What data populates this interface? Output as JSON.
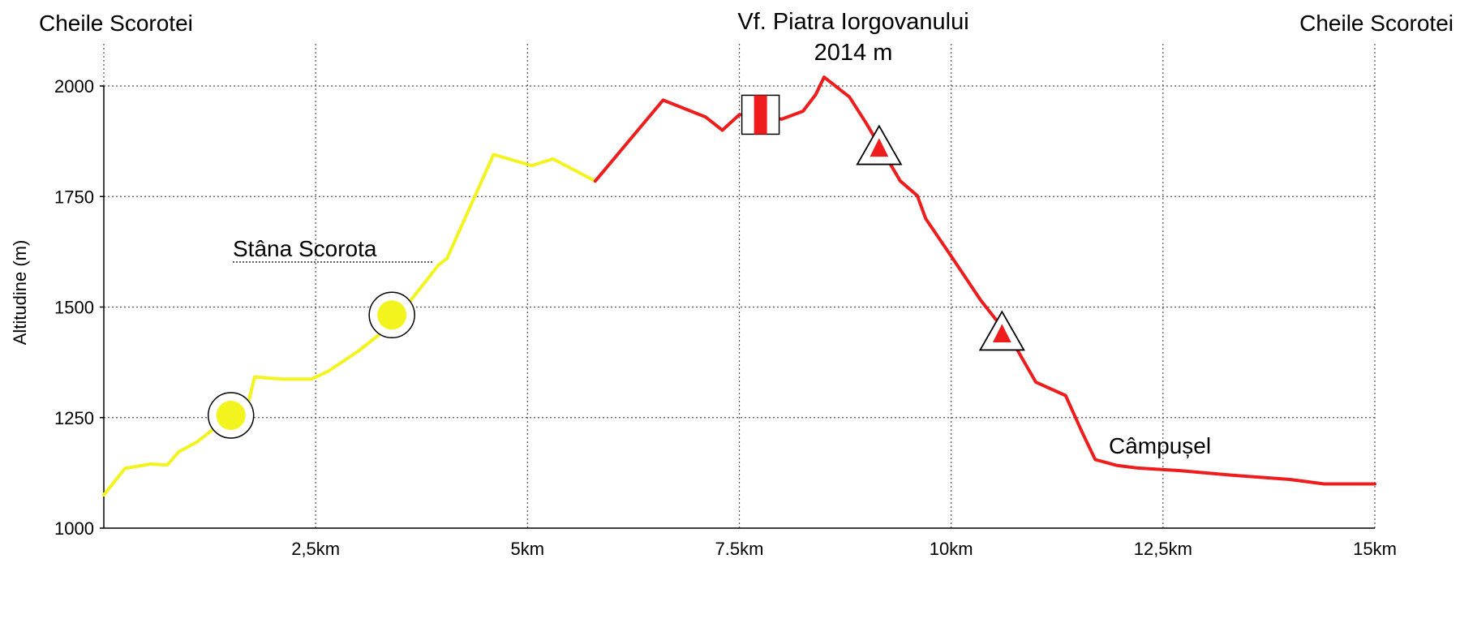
{
  "chart_data": {
    "type": "line",
    "title": "",
    "xlabel": "",
    "ylabel": "Altitudine (m)",
    "xlim": [
      0,
      15
    ],
    "ylim": [
      1000,
      2000
    ],
    "x_ticks": [
      {
        "value": 2.5,
        "label": "2,5km"
      },
      {
        "value": 5,
        "label": "5km"
      },
      {
        "value": 7.5,
        "label": "7.5km"
      },
      {
        "value": 10,
        "label": "10km"
      },
      {
        "value": 12.5,
        "label": "12,5km"
      },
      {
        "value": 15,
        "label": "15km"
      }
    ],
    "y_ticks": [
      {
        "value": 1000,
        "label": "1000"
      },
      {
        "value": 1250,
        "label": "1250"
      },
      {
        "value": 1500,
        "label": "1500"
      },
      {
        "value": 1750,
        "label": "1750"
      },
      {
        "value": 2000,
        "label": "2000"
      }
    ],
    "grid": true,
    "series": [
      {
        "color": "#f3f31e",
        "points": [
          [
            0.0,
            1075
          ],
          [
            0.25,
            1135
          ],
          [
            0.55,
            1145
          ],
          [
            0.75,
            1143
          ],
          [
            0.88,
            1172
          ],
          [
            1.1,
            1195
          ],
          [
            1.3,
            1225
          ],
          [
            1.5,
            1250
          ],
          [
            1.7,
            1280
          ],
          [
            1.78,
            1342
          ],
          [
            2.1,
            1337
          ],
          [
            2.45,
            1337
          ],
          [
            2.65,
            1355
          ],
          [
            3.0,
            1400
          ],
          [
            3.3,
            1445
          ],
          [
            3.45,
            1470
          ],
          [
            3.6,
            1510
          ],
          [
            3.95,
            1595
          ],
          [
            4.05,
            1610
          ],
          [
            4.6,
            1845
          ],
          [
            5.05,
            1820
          ],
          [
            5.3,
            1835
          ],
          [
            5.8,
            1785
          ]
        ]
      },
      {
        "color": "#ee1c1c",
        "points": [
          [
            5.8,
            1785
          ],
          [
            6.6,
            1968
          ],
          [
            7.1,
            1930
          ],
          [
            7.3,
            1900
          ],
          [
            7.5,
            1935
          ],
          [
            7.8,
            1932
          ],
          [
            8.0,
            1925
          ],
          [
            8.25,
            1943
          ],
          [
            8.4,
            1980
          ],
          [
            8.5,
            2020
          ],
          [
            8.8,
            1975
          ],
          [
            9.0,
            1915
          ],
          [
            9.4,
            1785
          ],
          [
            9.6,
            1752
          ],
          [
            9.7,
            1700
          ],
          [
            10.0,
            1615
          ],
          [
            10.35,
            1515
          ],
          [
            10.7,
            1430
          ],
          [
            11.0,
            1330
          ],
          [
            11.35,
            1300
          ],
          [
            11.55,
            1215
          ],
          [
            11.7,
            1155
          ],
          [
            11.95,
            1142
          ],
          [
            12.2,
            1136
          ],
          [
            12.7,
            1130
          ],
          [
            13.3,
            1120
          ],
          [
            14.0,
            1110
          ],
          [
            14.4,
            1100
          ],
          [
            15.0,
            1100
          ]
        ]
      }
    ],
    "annotations": [
      {
        "text": "Cheile Scorotei",
        "position": "top-left"
      },
      {
        "text": "Cheile Scorotei",
        "position": "top-right"
      },
      {
        "text": "Vf. Piatra Iorgovanului",
        "position": "top-center"
      },
      {
        "text": "2014 m",
        "position": "top-center"
      },
      {
        "text": "Stâna Scorota",
        "x": 2.4,
        "y": 1620
      },
      {
        "text": "Câmpușel",
        "x": 12.4,
        "y": 1190
      }
    ],
    "markers": [
      {
        "type": "yellow-circle",
        "x": 1.5,
        "y": 1255
      },
      {
        "type": "yellow-circle",
        "x": 3.4,
        "y": 1482
      },
      {
        "type": "red-stripe",
        "x": 7.75,
        "y": 1935
      },
      {
        "type": "red-triangle",
        "x": 9.15,
        "y": 1860
      },
      {
        "type": "red-triangle",
        "x": 10.6,
        "y": 1440
      }
    ]
  }
}
